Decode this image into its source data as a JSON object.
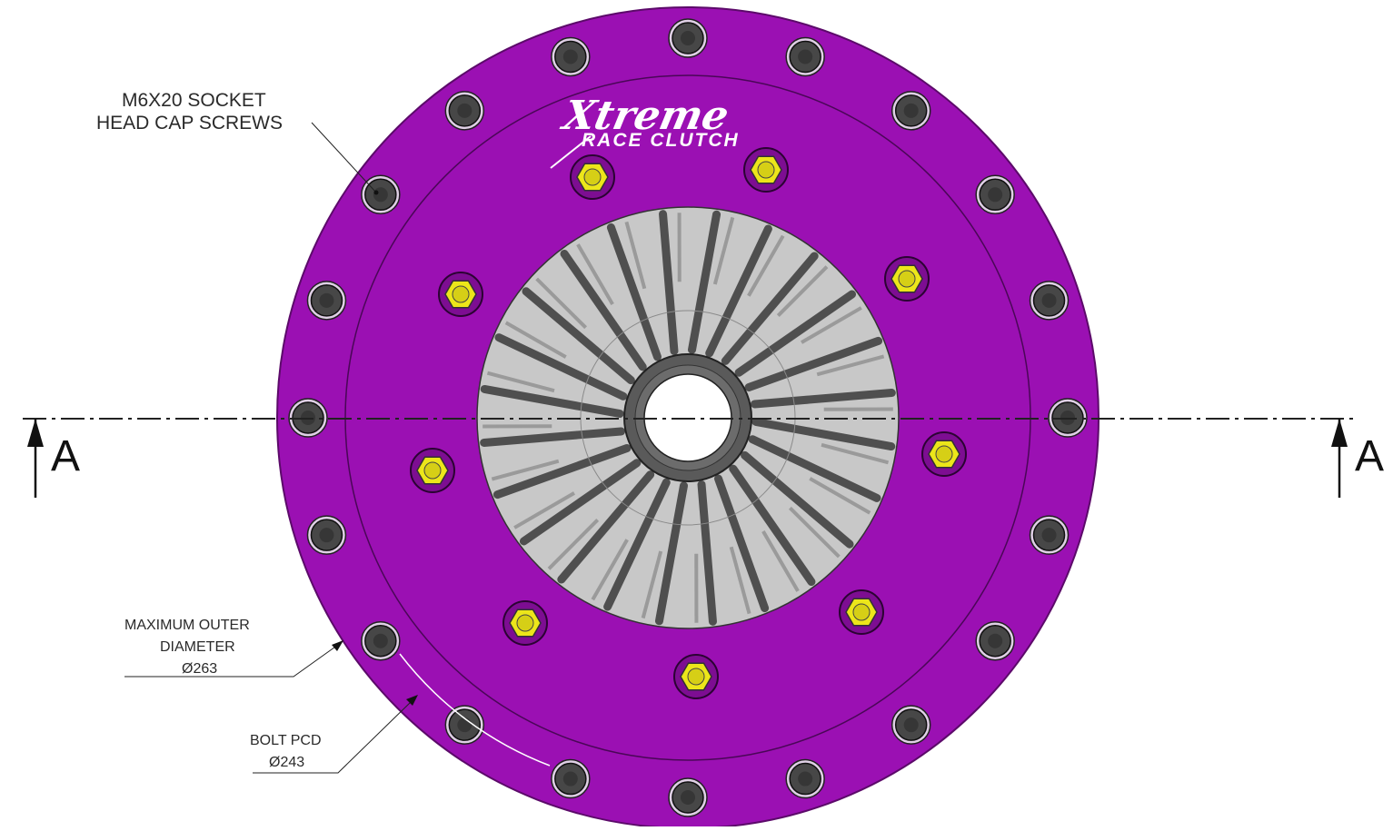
{
  "drawing": {
    "brand": {
      "logo_word": "Xtreme",
      "logo_subtitle": "RACE CLUTCH"
    },
    "annotations": {
      "screws_line1": "M6X20 SOCKET",
      "screws_line2": "HEAD CAP SCREWS",
      "outer_line1": "MAXIMUM OUTER",
      "outer_line2": "DIAMETER",
      "outer_value": "Ø263",
      "pcd_line1": "BOLT PCD",
      "pcd_value": "Ø243"
    },
    "section": {
      "left_label": "A",
      "right_label": "A"
    },
    "part": {
      "outer_bolt_count": 20,
      "yellow_nut_count": 9,
      "finger_count": 24
    },
    "colors": {
      "body": "#9b10b3",
      "body_edge": "#5c0a6a",
      "diaphragm": "#c8c8c8",
      "finger": "#4f4f4f",
      "nut": "#ece61a",
      "bolt": "#474747"
    }
  }
}
